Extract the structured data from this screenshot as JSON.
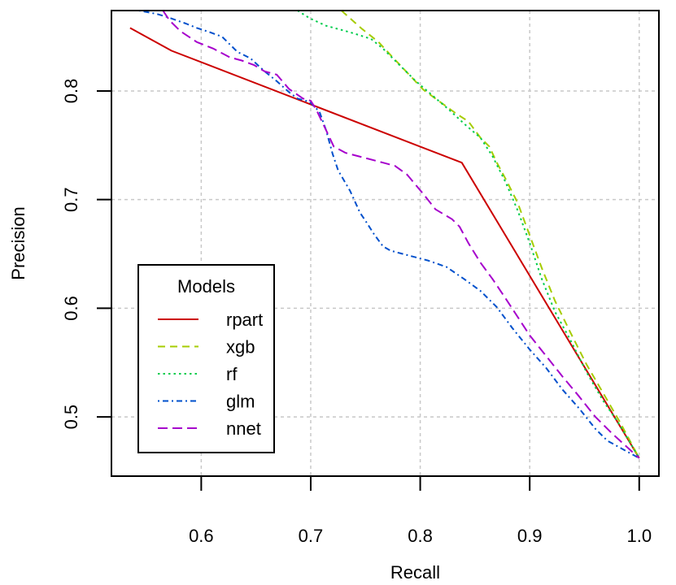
{
  "chart_data": {
    "type": "line",
    "title": "",
    "xlabel": "Recall",
    "ylabel": "Precision",
    "xlim": [
      0.518,
      1.018
    ],
    "ylim": [
      0.4455,
      0.874
    ],
    "xticks": [
      0.6,
      0.7,
      0.8,
      0.9,
      1.0
    ],
    "xtick_labels": [
      "0.6",
      "0.7",
      "0.8",
      "0.9",
      "1.0"
    ],
    "yticks": [
      0.5,
      0.6,
      0.7,
      0.8
    ],
    "ytick_labels": [
      "0.5",
      "0.6",
      "0.7",
      "0.8"
    ],
    "grid": true,
    "legend": {
      "title": "Models",
      "placement": "bottom-left"
    },
    "series": [
      {
        "name": "rpart",
        "color": "#CC0000",
        "dash": "solid",
        "x": [
          0.535,
          0.573,
          0.838,
          1.0
        ],
        "y": [
          0.858,
          0.837,
          0.734,
          0.462
        ]
      },
      {
        "name": "xgb",
        "color": "#A6CC00",
        "dash": "dashed",
        "x": [
          0.728,
          0.747,
          0.762,
          0.773,
          0.788,
          0.803,
          0.818,
          0.833,
          0.844,
          0.855,
          0.863,
          0.87,
          0.878,
          0.889,
          0.9,
          0.911,
          0.923,
          0.937,
          0.952,
          0.967,
          0.982,
          1.0
        ],
        "y": [
          0.874,
          0.857,
          0.845,
          0.833,
          0.817,
          0.801,
          0.79,
          0.779,
          0.772,
          0.757,
          0.749,
          0.734,
          0.719,
          0.697,
          0.667,
          0.637,
          0.607,
          0.578,
          0.548,
          0.522,
          0.496,
          0.462
        ]
      },
      {
        "name": "rf",
        "color": "#00CC4C",
        "dash": "dotted",
        "x": [
          0.688,
          0.699,
          0.714,
          0.736,
          0.755,
          0.766,
          0.781,
          0.796,
          0.811,
          0.826,
          0.841,
          0.855,
          0.866,
          0.878,
          0.889,
          0.9,
          0.911,
          0.923,
          0.937,
          0.952,
          0.967,
          0.982,
          1.0
        ],
        "y": [
          0.874,
          0.867,
          0.86,
          0.854,
          0.848,
          0.839,
          0.824,
          0.809,
          0.796,
          0.783,
          0.769,
          0.757,
          0.74,
          0.716,
          0.69,
          0.66,
          0.627,
          0.597,
          0.571,
          0.541,
          0.515,
          0.493,
          0.462
        ]
      },
      {
        "name": "glm",
        "color": "#0050CC",
        "dash": "dotdash",
        "x": [
          0.543,
          0.559,
          0.569,
          0.586,
          0.596,
          0.608,
          0.619,
          0.624,
          0.633,
          0.645,
          0.658,
          0.669,
          0.68,
          0.688,
          0.699,
          0.708,
          0.714,
          0.72,
          0.725,
          0.736,
          0.745,
          0.751,
          0.758,
          0.766,
          0.773,
          0.788,
          0.807,
          0.824,
          0.84,
          0.855,
          0.87,
          0.884,
          0.9,
          0.915,
          0.93,
          0.945,
          0.96,
          0.971,
          1.0
        ],
        "y": [
          0.874,
          0.871,
          0.868,
          0.862,
          0.858,
          0.854,
          0.85,
          0.845,
          0.836,
          0.83,
          0.818,
          0.809,
          0.799,
          0.793,
          0.79,
          0.781,
          0.764,
          0.742,
          0.727,
          0.708,
          0.688,
          0.679,
          0.668,
          0.657,
          0.653,
          0.649,
          0.644,
          0.638,
          0.627,
          0.616,
          0.601,
          0.582,
          0.562,
          0.545,
          0.525,
          0.508,
          0.489,
          0.478,
          0.462
        ]
      },
      {
        "name": "nnet",
        "color": "#A600CC",
        "dash": "longdash",
        "x": [
          0.565,
          0.571,
          0.581,
          0.596,
          0.611,
          0.626,
          0.637,
          0.648,
          0.658,
          0.669,
          0.68,
          0.693,
          0.7,
          0.705,
          0.714,
          0.721,
          0.732,
          0.751,
          0.766,
          0.777,
          0.788,
          0.803,
          0.814,
          0.829,
          0.836,
          0.844,
          0.855,
          0.866,
          0.878,
          0.889,
          0.9,
          0.915,
          0.93,
          0.945,
          0.96,
          0.975,
          1.0
        ],
        "y": [
          0.874,
          0.865,
          0.855,
          0.845,
          0.839,
          0.831,
          0.828,
          0.824,
          0.818,
          0.815,
          0.802,
          0.793,
          0.791,
          0.783,
          0.764,
          0.749,
          0.743,
          0.738,
          0.734,
          0.731,
          0.723,
          0.705,
          0.691,
          0.682,
          0.675,
          0.66,
          0.642,
          0.627,
          0.609,
          0.592,
          0.575,
          0.556,
          0.537,
          0.519,
          0.5,
          0.485,
          0.462
        ]
      }
    ]
  }
}
